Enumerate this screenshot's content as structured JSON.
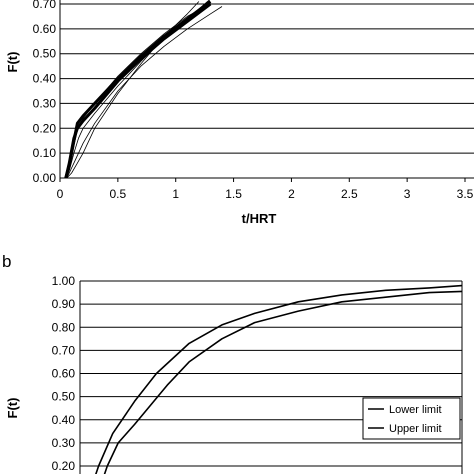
{
  "chart_data": [
    {
      "type": "line",
      "panel_label": "",
      "xlabel": "t/HRT",
      "ylabel": "F(t)",
      "xlim": [
        0,
        3.5
      ],
      "ylim": [
        0,
        0.7
      ],
      "x_ticks": [
        "0",
        "0.5",
        "1",
        "1.5",
        "2",
        "2.5",
        "3",
        "3.5"
      ],
      "y_ticks": [
        "0.00",
        "0.10",
        "0.20",
        "0.30",
        "0.40",
        "0.50",
        "0.60",
        "0.70"
      ],
      "grid": "horizontal",
      "series": [
        {
          "x": [
            0.05,
            0.08,
            0.12,
            0.15,
            0.2,
            0.3,
            0.5,
            0.7,
            0.9,
            1.1,
            1.3
          ],
          "y": [
            0.0,
            0.05,
            0.15,
            0.22,
            0.25,
            0.3,
            0.4,
            0.49,
            0.57,
            0.64,
            0.71
          ]
        },
        {
          "x": [
            0.05,
            0.08,
            0.12,
            0.15,
            0.2,
            0.3,
            0.5,
            0.7,
            0.9,
            1.1,
            1.3
          ],
          "y": [
            0.0,
            0.06,
            0.16,
            0.2,
            0.23,
            0.28,
            0.39,
            0.48,
            0.56,
            0.63,
            0.7
          ]
        },
        {
          "x": [
            0.04,
            0.08,
            0.12,
            0.16,
            0.2,
            0.3,
            0.5,
            0.7,
            0.9,
            1.1,
            1.3
          ],
          "y": [
            0.0,
            0.03,
            0.1,
            0.16,
            0.2,
            0.26,
            0.37,
            0.47,
            0.56,
            0.64,
            0.72
          ]
        },
        {
          "x": [
            0.06,
            0.1,
            0.15,
            0.2,
            0.3,
            0.5,
            0.7,
            0.9,
            1.1,
            1.2
          ],
          "y": [
            0.0,
            0.02,
            0.06,
            0.1,
            0.2,
            0.34,
            0.46,
            0.57,
            0.66,
            0.71
          ]
        },
        {
          "x": [
            0.05,
            0.08,
            0.12,
            0.15,
            0.2,
            0.3,
            0.5,
            0.7,
            0.9,
            1.1,
            1.3
          ],
          "y": [
            0.0,
            0.04,
            0.13,
            0.19,
            0.24,
            0.3,
            0.41,
            0.5,
            0.58,
            0.65,
            0.7
          ]
        },
        {
          "x": [
            0.06,
            0.12,
            0.2,
            0.3,
            0.5,
            0.7,
            0.9,
            1.1,
            1.3,
            1.4
          ],
          "y": [
            0.0,
            0.06,
            0.14,
            0.22,
            0.35,
            0.45,
            0.53,
            0.6,
            0.66,
            0.69
          ]
        }
      ]
    },
    {
      "type": "line",
      "panel_label": "b",
      "xlabel": "",
      "ylabel": "F(t)",
      "xlim": [
        0,
        3.5
      ],
      "ylim": [
        0.2,
        1.0
      ],
      "y_ticks": [
        "0.20",
        "0.30",
        "0.40",
        "0.50",
        "0.60",
        "0.70",
        "0.80",
        "0.90",
        "1.00"
      ],
      "grid": "horizontal",
      "legend": "lower-right",
      "series": [
        {
          "name": "Lower limit",
          "x": [
            0.12,
            0.17,
            0.3,
            0.5,
            0.7,
            1.0,
            1.3,
            1.6,
            2.0,
            2.4,
            2.8,
            3.2,
            3.5
          ],
          "y": [
            0.13,
            0.2,
            0.34,
            0.48,
            0.6,
            0.73,
            0.81,
            0.86,
            0.91,
            0.94,
            0.96,
            0.97,
            0.98
          ]
        },
        {
          "name": "Upper limit",
          "x": [
            0.2,
            0.25,
            0.35,
            0.5,
            0.8,
            1.0,
            1.3,
            1.6,
            2.0,
            2.4,
            2.8,
            3.2,
            3.5
          ],
          "y": [
            0.13,
            0.2,
            0.3,
            0.38,
            0.55,
            0.65,
            0.75,
            0.82,
            0.87,
            0.91,
            0.93,
            0.95,
            0.955
          ]
        }
      ]
    }
  ]
}
